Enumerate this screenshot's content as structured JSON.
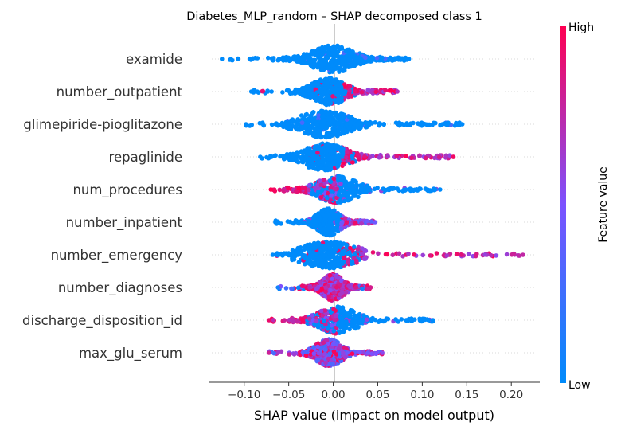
{
  "chart_data": {
    "type": "scatter",
    "subtype": "shap-beeswarm",
    "title": "Diabetes_MLP_random – SHAP decomposed class 1",
    "xlabel": "SHAP value (impact on model output)",
    "xlim": [
      -0.14,
      0.232
    ],
    "xticks": [
      -0.1,
      -0.05,
      0.0,
      0.05,
      0.1,
      0.15,
      0.2
    ],
    "xtick_labels": [
      "−0.10",
      "−0.05",
      "0.00",
      "0.05",
      "0.10",
      "0.15",
      "0.20"
    ],
    "colorbar": {
      "label": "Feature value",
      "high_label": "High",
      "low_label": "Low",
      "low_color": "#008bfb",
      "high_color": "#ff0052",
      "mid_color": "#7c52ff"
    },
    "features": [
      {
        "name": "examide",
        "min": -0.125,
        "max": 0.085,
        "center": 0.0,
        "spread": 0.035,
        "peak": 0.0,
        "color_mode": "low"
      },
      {
        "name": "number_outpatient",
        "min": -0.092,
        "max": 0.072,
        "center": -0.005,
        "spread": 0.025,
        "peak": -0.005,
        "color_mode": "pos_high"
      },
      {
        "name": "glimepiride-pioglitazone",
        "min": -0.098,
        "max": 0.145,
        "center": -0.005,
        "spread": 0.03,
        "peak": -0.01,
        "color_mode": "low"
      },
      {
        "name": "repaglinide",
        "min": -0.082,
        "max": 0.135,
        "center": -0.005,
        "spread": 0.028,
        "peak": -0.01,
        "color_mode": "pos_high"
      },
      {
        "name": "num_procedures",
        "min": -0.07,
        "max": 0.12,
        "center": 0.0,
        "spread": 0.028,
        "peak": 0.005,
        "color_mode": "neg_high"
      },
      {
        "name": "number_inpatient",
        "min": -0.065,
        "max": 0.047,
        "center": -0.005,
        "spread": 0.02,
        "peak": -0.005,
        "color_mode": "pos_mixed"
      },
      {
        "name": "number_emergency",
        "min": -0.068,
        "max": 0.213,
        "center": -0.005,
        "spread": 0.025,
        "peak": -0.005,
        "color_mode": "pos_high"
      },
      {
        "name": "number_diagnoses",
        "min": -0.062,
        "max": 0.042,
        "center": -0.002,
        "spread": 0.02,
        "peak": 0.0,
        "color_mode": "mixed_dense"
      },
      {
        "name": "discharge_disposition_id",
        "min": -0.072,
        "max": 0.112,
        "center": 0.0,
        "spread": 0.025,
        "peak": 0.005,
        "color_mode": "neg_high"
      },
      {
        "name": "max_glu_serum",
        "min": -0.072,
        "max": 0.055,
        "center": -0.005,
        "spread": 0.02,
        "peak": -0.005,
        "color_mode": "mixed"
      }
    ]
  }
}
